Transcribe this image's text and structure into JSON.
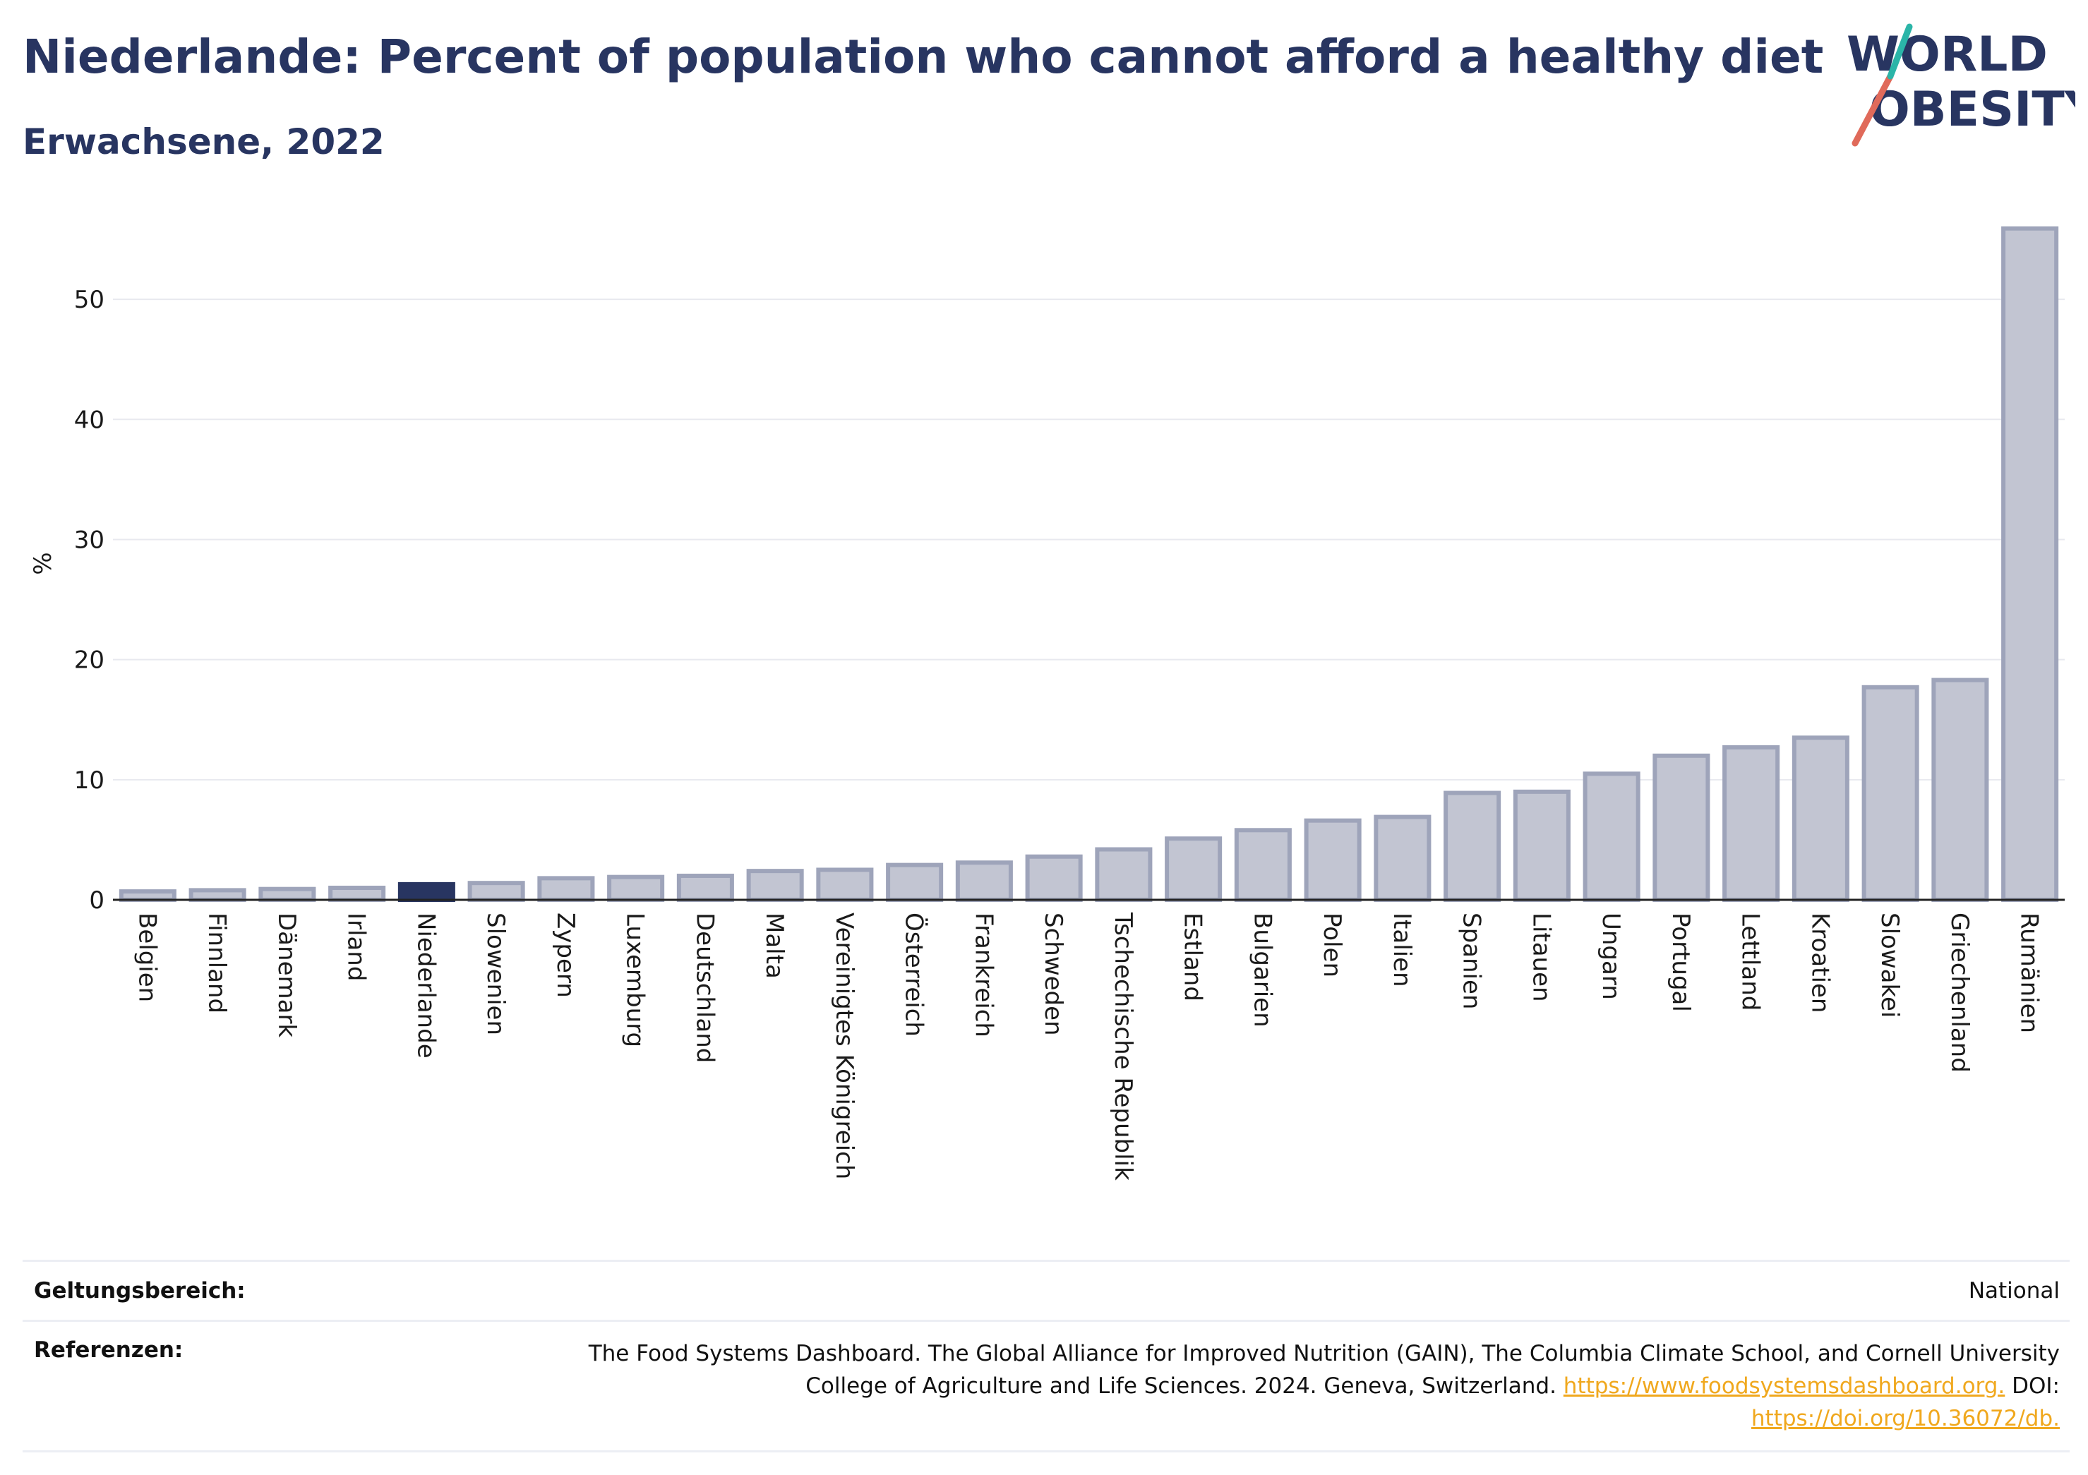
{
  "header": {
    "title": "Niederlande: Percent of population who cannot afford a healthy diet",
    "subtitle": "Erwachsene, 2022"
  },
  "logo": {
    "line1": "WORLD",
    "line2": "OBESITY",
    "accent_color": "#e06a5a",
    "accent_color_2": "#2bb5a8"
  },
  "colors": {
    "highlight": "#283561",
    "bar_fill": "#c2c5d2",
    "bar_stroke": "#9ea4ba",
    "axis": "#222222",
    "grid": "#e8e9ef"
  },
  "chart_data": {
    "type": "bar",
    "title": "Niederlande: Percent of population who cannot afford a healthy diet",
    "subtitle": "Erwachsene, 2022",
    "ylabel": "%",
    "xlabel": "",
    "ylim": [
      0,
      56
    ],
    "yticks": [
      0,
      10,
      20,
      30,
      40,
      50
    ],
    "grid": true,
    "highlight": "Niederlande",
    "categories": [
      "Belgien",
      "Finnland",
      "Dänemark",
      "Irland",
      "Niederlande",
      "Slowenien",
      "Zypern",
      "Luxemburg",
      "Deutschland",
      "Malta",
      "Vereinigtes Königreich",
      "Österreich",
      "Frankreich",
      "Schweden",
      "Tschechische Republik",
      "Estland",
      "Bulgarien",
      "Polen",
      "Italien",
      "Spanien",
      "Litauen",
      "Ungarn",
      "Portugal",
      "Lettland",
      "Kroatien",
      "Slowakei",
      "Griechenland",
      "Rumänien"
    ],
    "values": [
      0.7,
      0.8,
      0.9,
      1.0,
      1.3,
      1.4,
      1.8,
      1.9,
      2.0,
      2.4,
      2.5,
      2.9,
      3.1,
      3.6,
      4.2,
      5.1,
      5.8,
      6.6,
      6.9,
      8.9,
      9.0,
      10.5,
      12.0,
      12.7,
      13.5,
      17.7,
      18.3,
      55.9
    ]
  },
  "meta": {
    "scope_label": "Geltungsbereich:",
    "scope_value": "National",
    "refs_label": "Referenzen:",
    "refs_text_1": "The Food Systems Dashboard. The Global Alliance for Improved Nutrition (GAIN), The Columbia Climate School, and Cornell University College of Agriculture and Life Sciences. 2024. Geneva, Switzerland.",
    "refs_link_1": "https://www.foodsystemsdashboard.org.",
    "refs_text_2": "DOI:",
    "refs_link_2": "https://doi.org/10.36072/db."
  }
}
